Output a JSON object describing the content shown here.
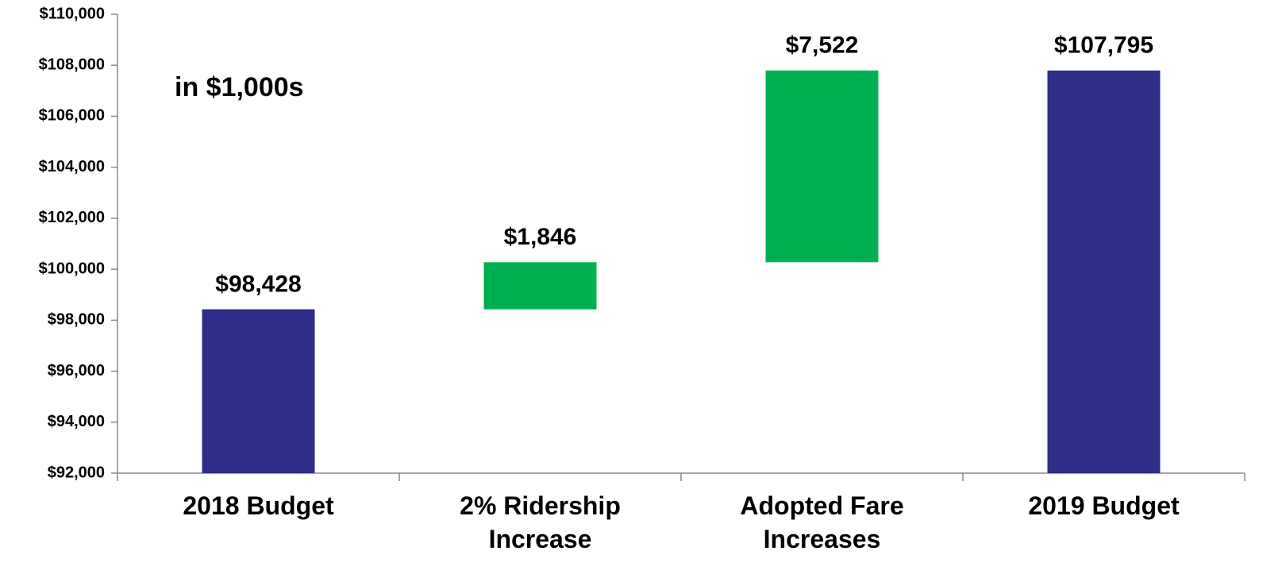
{
  "chart_data": {
    "type": "waterfall",
    "annotation": "in $1,000s",
    "categories": [
      "2018 Budget",
      "2% Ridership Increase",
      "Adopted Fare Increases",
      "2019 Budget"
    ],
    "values": [
      98428,
      1846,
      7522,
      107795
    ],
    "value_labels": [
      "$98,428",
      "$1,846",
      "$7,522",
      "$107,795"
    ],
    "kinds": [
      "total",
      "delta",
      "delta",
      "total"
    ],
    "colors": {
      "total": "#2e2d88",
      "delta": "#00b050"
    },
    "ylim": [
      92000,
      110000
    ],
    "yticks": [
      {
        "value": 92000,
        "label": "$92,000"
      },
      {
        "value": 94000,
        "label": "$94,000"
      },
      {
        "value": 96000,
        "label": "$96,000"
      },
      {
        "value": 98000,
        "label": "$98,000"
      },
      {
        "value": 100000,
        "label": "$100,000"
      },
      {
        "value": 102000,
        "label": "$102,000"
      },
      {
        "value": 104000,
        "label": "$104,000"
      },
      {
        "value": 106000,
        "label": "$106,000"
      },
      {
        "value": 108000,
        "label": "$108,000"
      },
      {
        "value": 110000,
        "label": "$110,000"
      }
    ],
    "grid": false
  }
}
